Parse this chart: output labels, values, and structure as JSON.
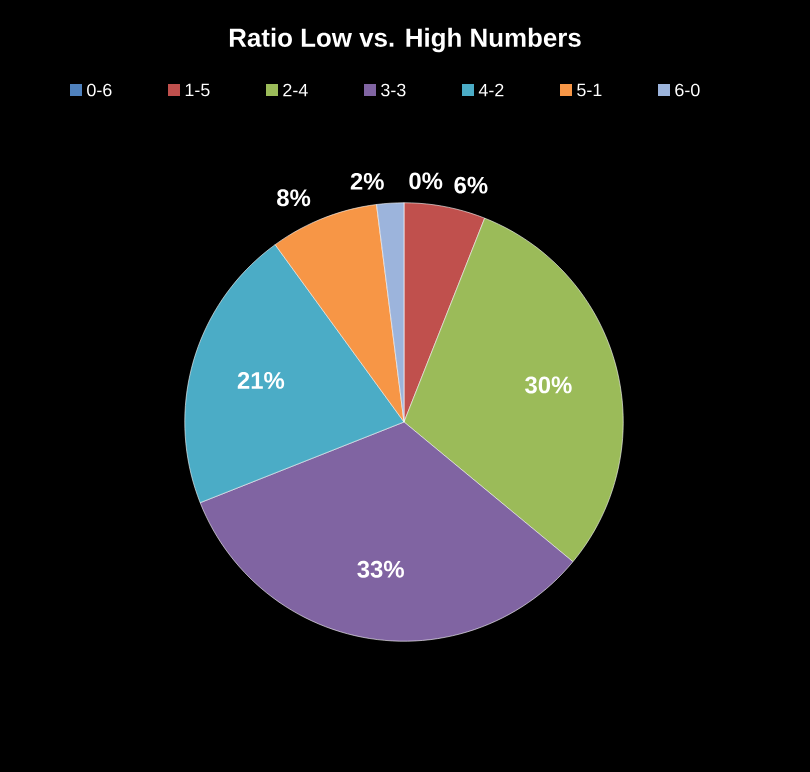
{
  "chart_data": {
    "type": "pie",
    "title": "Ratio Low vs. High Numbers",
    "categories": [
      "0-6",
      "1-5",
      "2-4",
      "3-3",
      "4-2",
      "5-1",
      "6-0"
    ],
    "values": [
      0,
      6,
      30,
      33,
      21,
      8,
      2
    ],
    "colors": [
      "#4f81bd",
      "#c0504d",
      "#9bbb59",
      "#8064a2",
      "#4bacc6",
      "#f79646",
      "#9cb4dc"
    ],
    "value_labels": [
      "0%",
      "6%",
      "30%",
      "33%",
      "21%",
      "8%",
      "2%"
    ],
    "legend": "top"
  }
}
